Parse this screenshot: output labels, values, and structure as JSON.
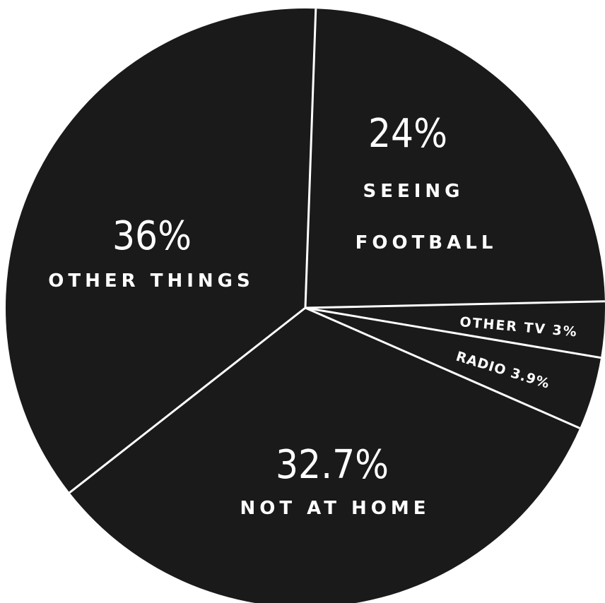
{
  "chart_data": {
    "type": "pie",
    "slices": [
      {
        "label_pct": "24%",
        "label_lines": [
          "SEEING",
          "FOOTBALL"
        ],
        "value": 24,
        "color": "#1a1a1a"
      },
      {
        "label_pct": "",
        "label_lines": [
          "OTHER TV 3%"
        ],
        "value": 3,
        "color": "#1a1a1a"
      },
      {
        "label_pct": "",
        "label_lines": [
          "RADIO 3.9%"
        ],
        "value": 3.9,
        "color": "#1a1a1a"
      },
      {
        "label_pct": "32.7%",
        "label_lines": [
          "NOT AT HOME"
        ],
        "value": 32.7,
        "color": "#1a1a1a"
      },
      {
        "label_pct": "36%",
        "label_lines": [
          "OTHER THINGS"
        ],
        "value": 36,
        "color": "#1a1a1a"
      }
    ],
    "separator_color": "#ffffff",
    "legend": "none"
  }
}
